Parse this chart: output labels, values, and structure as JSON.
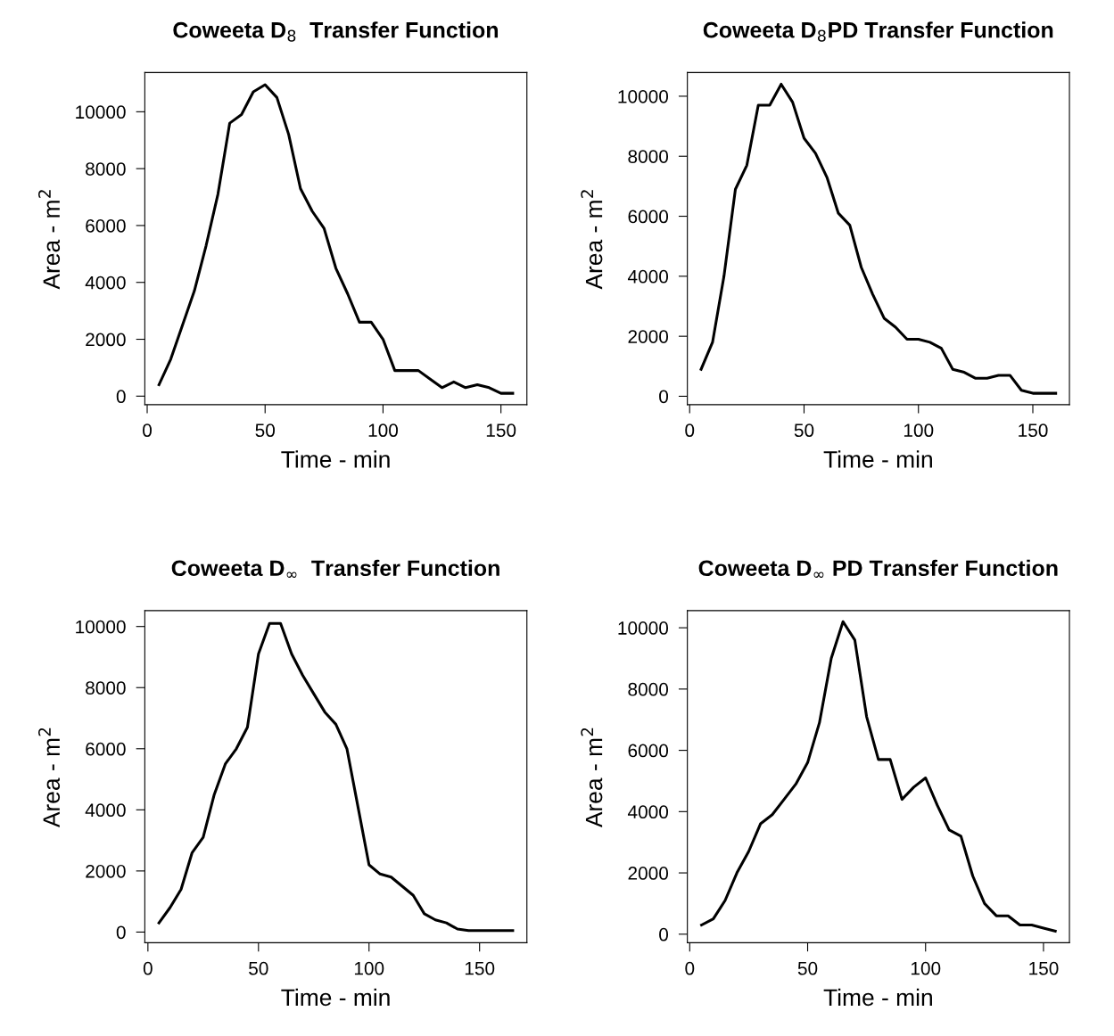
{
  "chart_data": [
    {
      "type": "line",
      "title": "Coweeta D$_{8}$  Transfer Function",
      "xlabel": "Time - min",
      "ylabel": "Area - m$^{2}$",
      "xlim": [
        -1,
        161
      ],
      "ylim": [
        -300,
        11380
      ],
      "xticks": [
        0,
        50,
        100,
        150
      ],
      "yticks": [
        0,
        2000,
        4000,
        6000,
        8000,
        10000
      ],
      "grid": false,
      "legend": false,
      "marker": "none",
      "line_style": "solid",
      "x": [
        5,
        10,
        15,
        20,
        25,
        30,
        35,
        40,
        45,
        50,
        55,
        60,
        65,
        70,
        75,
        80,
        85,
        90,
        95,
        100,
        105,
        110,
        115,
        120,
        125,
        130,
        135,
        140,
        145,
        150,
        155
      ],
      "series": [
        {
          "color": "#000000",
          "values": [
            400,
            1300,
            2500,
            3700,
            5300,
            7100,
            9600,
            9900,
            10700,
            10950,
            10500,
            9200,
            7300,
            6500,
            5900,
            4500,
            3600,
            2600,
            2600,
            2000,
            900,
            900,
            900,
            600,
            300,
            500,
            300,
            400,
            300,
            100,
            100
          ]
        }
      ]
    },
    {
      "type": "line",
      "title": "Coweeta D$_{8}$PD Transfer Function",
      "xlabel": "Time - min",
      "ylabel": "Area - m$^{2}$",
      "xlim": [
        -1,
        166
      ],
      "ylim": [
        -280,
        10790
      ],
      "xticks": [
        0,
        50,
        100,
        150
      ],
      "yticks": [
        0,
        2000,
        4000,
        6000,
        8000,
        10000
      ],
      "grid": false,
      "legend": false,
      "marker": "none",
      "line_style": "solid",
      "x": [
        5,
        10,
        15,
        20,
        25,
        30,
        35,
        40,
        45,
        50,
        55,
        60,
        65,
        70,
        75,
        80,
        85,
        90,
        95,
        100,
        105,
        110,
        115,
        120,
        125,
        130,
        135,
        140,
        145,
        150,
        155,
        160
      ],
      "series": [
        {
          "color": "#000000",
          "values": [
            900,
            1800,
            4000,
            6900,
            7700,
            9700,
            9700,
            10400,
            9800,
            8600,
            8100,
            7300,
            6100,
            5700,
            4300,
            3400,
            2600,
            2300,
            1900,
            1900,
            1800,
            1600,
            900,
            800,
            600,
            600,
            700,
            700,
            200,
            100,
            100,
            100
          ]
        }
      ]
    },
    {
      "type": "line",
      "title": "Coweeta D$_{∞}$  Transfer Function",
      "xlabel": "Time - min",
      "ylabel": "Area - m$^{2}$",
      "xlim": [
        -1.4,
        171.4
      ],
      "ylim": [
        -350,
        10520
      ],
      "xticks": [
        0,
        50,
        100,
        150
      ],
      "yticks": [
        0,
        2000,
        4000,
        6000,
        8000,
        10000
      ],
      "grid": false,
      "legend": false,
      "marker": "none",
      "line_style": "solid",
      "x": [
        5,
        10,
        15,
        20,
        25,
        30,
        35,
        40,
        45,
        50,
        55,
        60,
        65,
        70,
        75,
        80,
        85,
        90,
        95,
        100,
        105,
        110,
        115,
        120,
        125,
        130,
        135,
        140,
        145,
        150,
        155,
        160,
        165
      ],
      "series": [
        {
          "color": "#000000",
          "values": [
            300,
            800,
            1400,
            2600,
            3100,
            4500,
            5500,
            6000,
            6700,
            9100,
            10100,
            10100,
            9100,
            8400,
            7800,
            7200,
            6800,
            6000,
            4100,
            2200,
            1900,
            1800,
            1500,
            1200,
            600,
            400,
            300,
            100,
            50,
            50,
            50,
            50,
            50
          ]
        }
      ]
    },
    {
      "type": "line",
      "title": "Coweeta D$_{∞}$ PD Transfer Function",
      "xlabel": "Time - min",
      "ylabel": "Area - m$^{2}$",
      "xlim": [
        -1,
        161
      ],
      "ylim": [
        -280,
        10560
      ],
      "xticks": [
        0,
        50,
        100,
        150
      ],
      "yticks": [
        0,
        2000,
        4000,
        6000,
        8000,
        10000
      ],
      "grid": false,
      "legend": false,
      "marker": "none",
      "line_style": "solid",
      "x": [
        5,
        10,
        15,
        20,
        25,
        30,
        35,
        40,
        45,
        50,
        55,
        60,
        65,
        70,
        75,
        80,
        85,
        90,
        95,
        100,
        105,
        110,
        115,
        120,
        125,
        130,
        135,
        140,
        145,
        150,
        155
      ],
      "series": [
        {
          "color": "#000000",
          "values": [
            300,
            500,
            1100,
            2000,
            2700,
            3600,
            3900,
            4400,
            4900,
            5600,
            6900,
            9000,
            10200,
            9600,
            7100,
            5700,
            5700,
            4400,
            4800,
            5100,
            4200,
            3400,
            3200,
            1900,
            1000,
            600,
            600,
            300,
            300,
            200,
            100
          ]
        }
      ]
    }
  ]
}
